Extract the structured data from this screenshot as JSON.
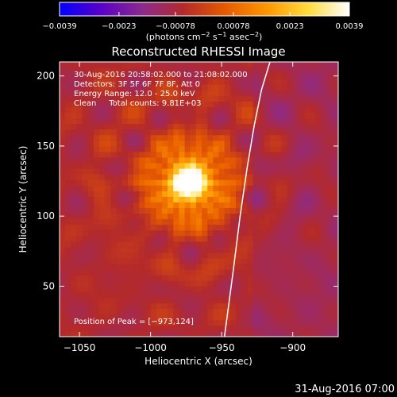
{
  "chart_data": {
    "type": "heatmap",
    "title": "Reconstructed RHESSI Image",
    "xlabel": "Heliocentric X (arcsec)",
    "ylabel": "Heliocentric Y (arcsec)",
    "xlim": [
      -1064,
      -868
    ],
    "ylim": [
      14,
      210
    ],
    "xticks": [
      {
        "value": -1050,
        "label": "−1050"
      },
      {
        "value": -1000,
        "label": "−1000"
      },
      {
        "value": -950,
        "label": "−950"
      },
      {
        "value": -900,
        "label": "−900"
      }
    ],
    "yticks": [
      {
        "value": 50,
        "label": "50"
      },
      {
        "value": 100,
        "label": "100"
      },
      {
        "value": 150,
        "label": "150"
      },
      {
        "value": 200,
        "label": "200"
      }
    ],
    "colorbar": {
      "ticks": [
        {
          "value": -0.0039,
          "label": "−0.0039"
        },
        {
          "value": -0.0023,
          "label": "−0.0023"
        },
        {
          "value": -0.00078,
          "label": "−0.00078"
        },
        {
          "value": 0.00078,
          "label": "0.00078"
        },
        {
          "value": 0.0023,
          "label": "0.0023"
        },
        {
          "value": 0.0039,
          "label": "0.0039"
        }
      ],
      "range": [
        -0.0039,
        0.0039
      ],
      "colors": [
        "#0000ff",
        "#5a00c8",
        "#8c2a8c",
        "#b42a2a",
        "#e65a00",
        "#ff9600",
        "#ffdc3c",
        "#ffffff"
      ],
      "unit_parts": [
        "(photons cm",
        "−2",
        " s",
        "−1",
        " asec",
        "−2",
        ")"
      ]
    },
    "annotations": [
      "30-Aug-2016 20:58:02.000 to 21:08:02.000",
      "Detectors: 3F 5F 6F 7F 8F, Att 0",
      "Energy Range: 12.0 - 25.0 keV",
      "Clean     Total counts: 9.81E+03"
    ],
    "peak": {
      "label": "Position of Peak = [−973,124]",
      "x": -973,
      "y": 124
    },
    "limb": {
      "x": [
        -948,
        -942,
        -937,
        -932,
        -927,
        -922,
        -916
      ],
      "y": [
        14,
        60,
        100,
        135,
        165,
        190,
        210
      ]
    }
  },
  "footer": {
    "timestamp": "31-Aug-2016 07:00"
  }
}
